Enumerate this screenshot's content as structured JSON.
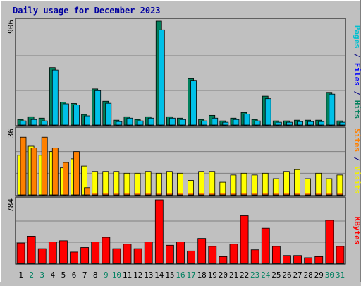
{
  "chart_data": {
    "type": "bar",
    "title": "Daily usage for December 2023",
    "categories": [
      "1",
      "2",
      "3",
      "4",
      "5",
      "6",
      "7",
      "8",
      "9",
      "10",
      "11",
      "12",
      "13",
      "14",
      "15",
      "16",
      "17",
      "18",
      "19",
      "20",
      "21",
      "22",
      "23",
      "24",
      "25",
      "26",
      "27",
      "28",
      "29",
      "30",
      "31"
    ],
    "weekend_days": [
      "2",
      "3",
      "9",
      "10",
      "16",
      "17",
      "23",
      "24",
      "30",
      "31"
    ],
    "panels": [
      {
        "id": "hits",
        "max_label": "906",
        "ymax": 906,
        "label_parts": [
          {
            "text": "Pages",
            "color": "#00c0d0"
          },
          {
            "text": " / ",
            "color": "#000080"
          },
          {
            "text": "Files",
            "color": "#0000ff"
          },
          {
            "text": " / ",
            "color": "#000080"
          },
          {
            "text": "Hits",
            "color": "#00805c"
          }
        ],
        "series": [
          {
            "name": "Hits",
            "color": "#00805c",
            "values": [
              48,
              72,
              60,
              501,
              200,
              188,
              92,
              315,
              208,
              42,
              72,
              48,
              72,
              906,
              72,
              60,
              405,
              48,
              84,
              36,
              60,
              109,
              48,
              252,
              36,
              36,
              42,
              42,
              42,
              285,
              36
            ]
          },
          {
            "name": "Files",
            "color": "#00c0e8",
            "values": [
              36,
              48,
              36,
              480,
              185,
              175,
              80,
              300,
              190,
              30,
              60,
              36,
              60,
              830,
              60,
              48,
              390,
              36,
              60,
              24,
              48,
              95,
              36,
              230,
              24,
              24,
              30,
              30,
              30,
              270,
              24
            ]
          }
        ]
      },
      {
        "id": "visits",
        "max_label": "36",
        "ymax": 36,
        "label_parts": [
          {
            "text": "Sites",
            "color": "#ff8000"
          },
          {
            "text": " / ",
            "color": "#000080"
          },
          {
            "text": "Visits",
            "color": "#f0f000"
          }
        ],
        "series": [
          {
            "name": "Visits",
            "color": "#ffff00",
            "values": [
              22,
              27,
              22,
              24,
              15,
              20,
              16,
              13,
              13,
              13,
              12,
              12,
              13,
              12,
              13,
              12,
              8,
              13,
              13,
              7,
              11,
              12,
              11,
              12,
              9,
              13,
              14,
              9,
              12,
              9,
              11
            ]
          },
          {
            "name": "Sites",
            "color": "#ff8000",
            "values": [
              32,
              26,
              32,
              26,
              18,
              24,
              4,
              0,
              0,
              0,
              0,
              0,
              0,
              0,
              0,
              0,
              0,
              0,
              0,
              0,
              0,
              0,
              0,
              0,
              0,
              0,
              0,
              0,
              0,
              0,
              0
            ]
          },
          {
            "name": "Sites",
            "color": "#ff8000",
            "values": [
              0,
              0,
              0,
              0,
              0,
              0,
              0,
              1,
              1,
              1,
              1,
              1,
              1,
              1,
              1,
              1,
              1,
              1,
              1,
              1,
              1,
              1,
              1,
              1,
              1,
              1,
              1,
              1,
              1,
              1,
              1
            ]
          }
        ]
      },
      {
        "id": "kbytes",
        "max_label": "784",
        "ymax": 784,
        "label_parts": [
          {
            "text": "KBytes",
            "color": "#ff0000"
          }
        ],
        "series": [
          {
            "name": "KBytes",
            "color": "#ff0000",
            "values": [
              252,
              336,
              182,
              266,
              280,
              140,
              196,
              266,
              322,
              182,
              238,
              182,
              266,
              784,
              224,
              266,
              154,
              308,
              210,
              84,
              238,
              588,
              168,
              434,
              210,
              98,
              98,
              70,
              84,
              532,
              210
            ]
          }
        ]
      }
    ],
    "legend": "right-vertical",
    "grid": true
  }
}
